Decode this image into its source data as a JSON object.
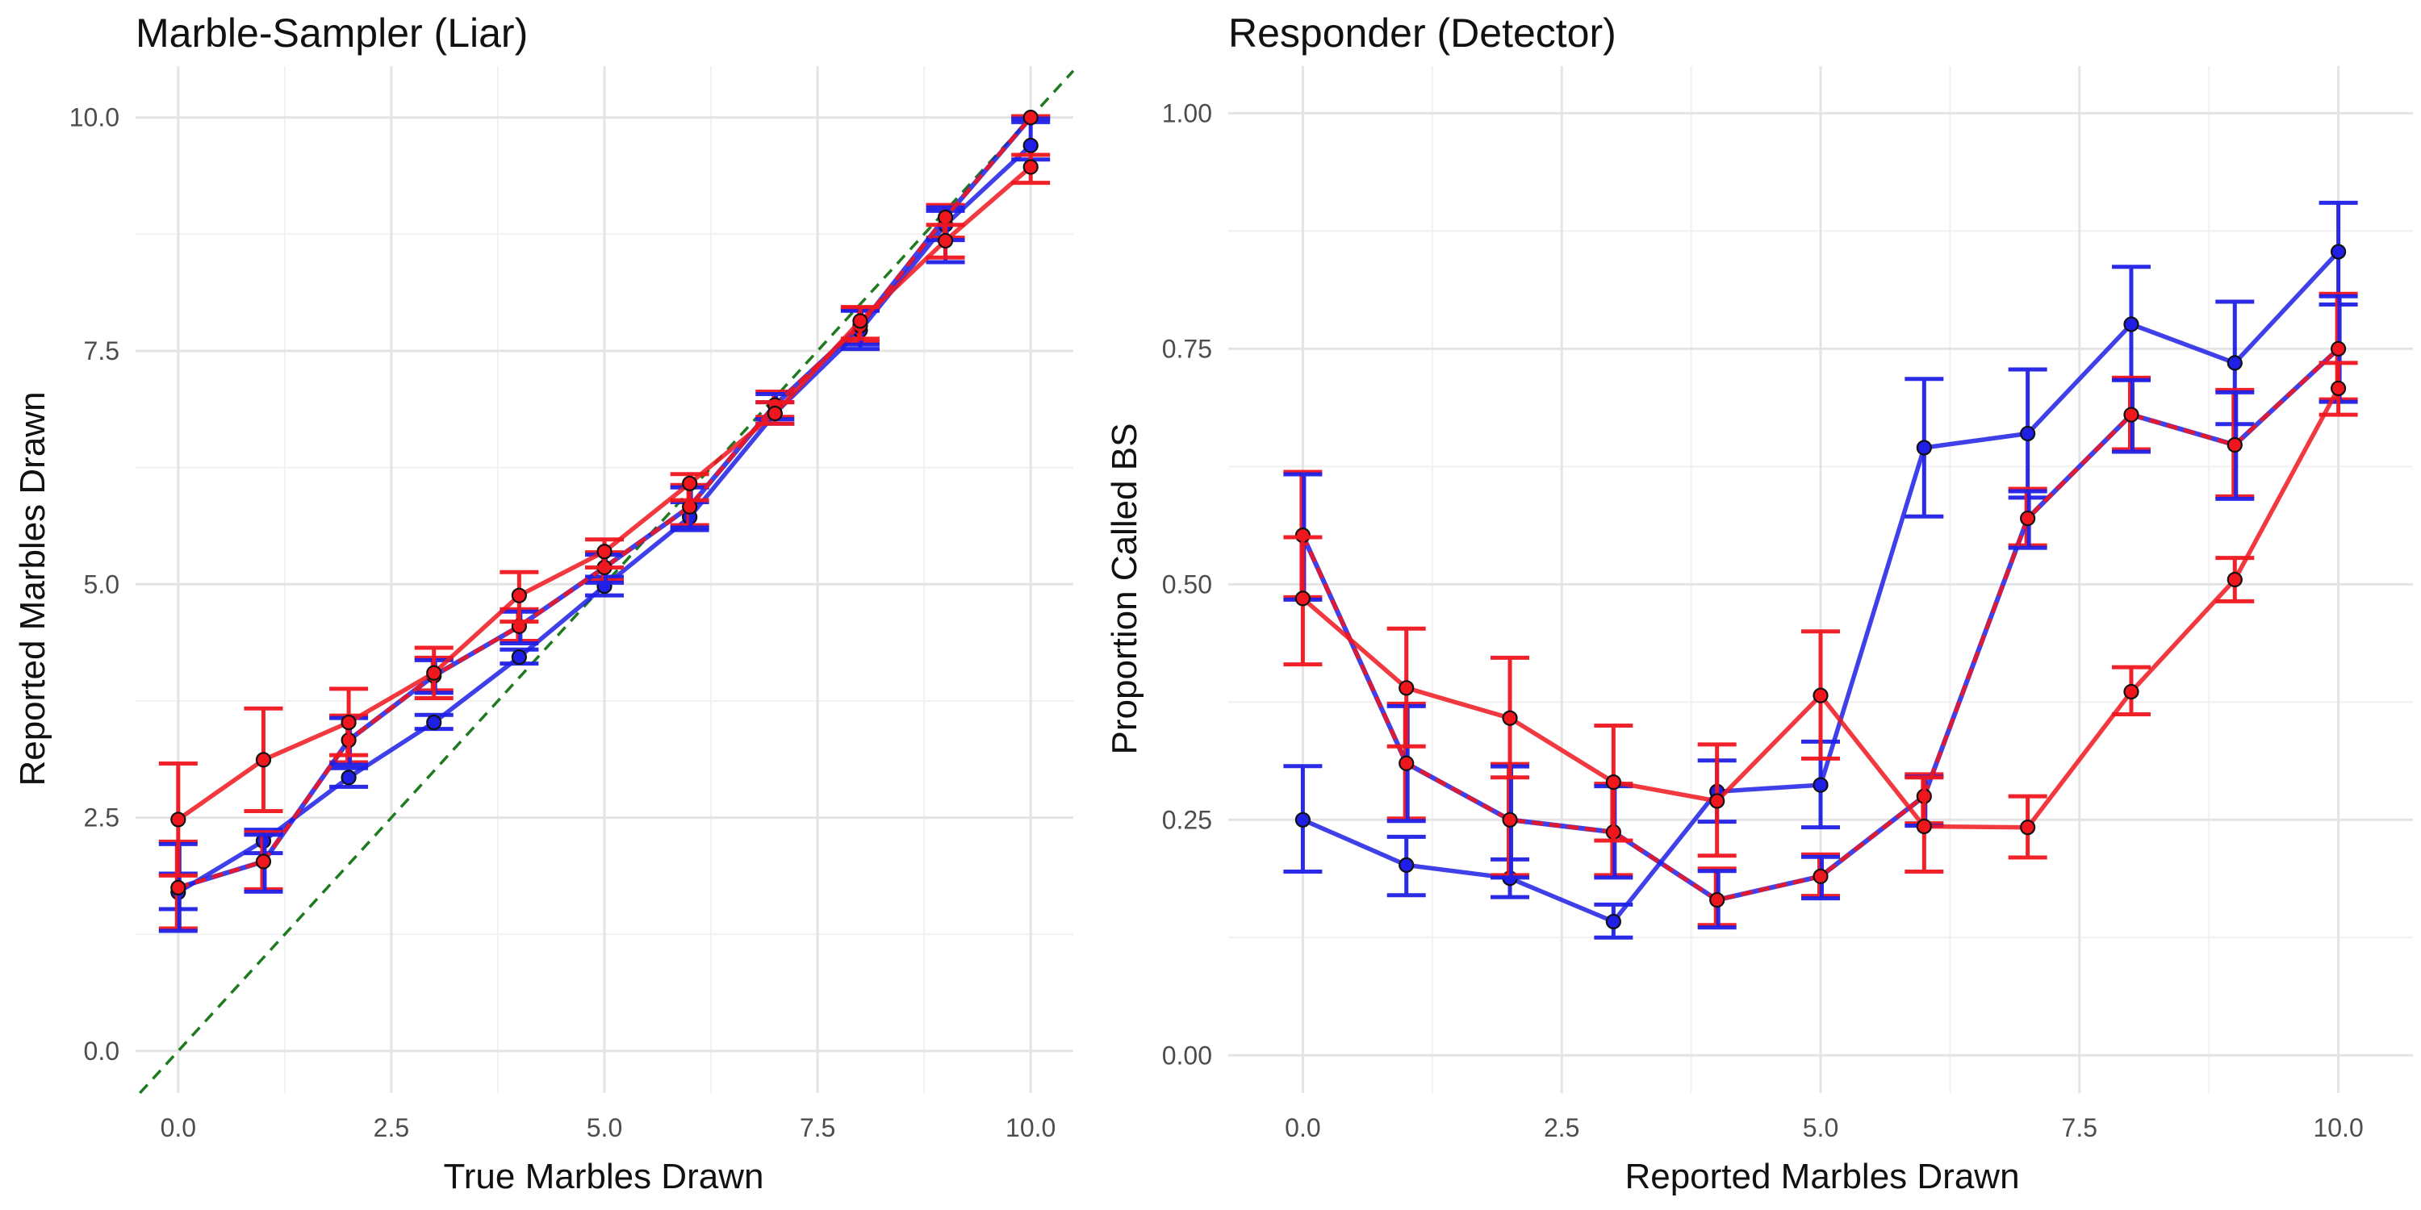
{
  "colors": {
    "blue": "#1f1fe6",
    "red": "#f0161e",
    "diagonal": "#1f7a1f",
    "grid_major": "#e4e4e4",
    "grid_minor": "#f1f1f1",
    "text": "#222222",
    "tick": "#4d4d4d"
  },
  "chart_data": [
    {
      "type": "line",
      "title": "Marble-Sampler (Liar)",
      "xlabel": "True Marbles Drawn",
      "ylabel": "Reported Marbles Drawn",
      "xlim": [
        -0.5,
        10.5
      ],
      "ylim": [
        -0.45,
        10.55
      ],
      "xticks": [
        "0.0",
        "2.5",
        "5.0",
        "7.5",
        "10.0"
      ],
      "yticks": [
        "0.0",
        "2.5",
        "5.0",
        "7.5",
        "10.0"
      ],
      "x": [
        0,
        1,
        2,
        3,
        4,
        5,
        6,
        7,
        8,
        9,
        10
      ],
      "grid": true,
      "reference_line": {
        "slope": 1,
        "intercept": 0,
        "style": "dashed",
        "color": "#1f7a1f"
      },
      "series": [
        {
          "color": "blue",
          "y": [
            1.7,
            2.25,
            2.93,
            3.52,
            4.22,
            4.98,
            5.72,
            6.83,
            7.72,
            8.85,
            9.7
          ],
          "err_lo": [
            1.52,
            2.12,
            2.83,
            3.45,
            4.15,
            4.88,
            5.58,
            6.72,
            7.52,
            8.45,
            9.55
          ],
          "err_hi": [
            1.9,
            2.37,
            3.03,
            3.6,
            4.3,
            5.08,
            5.88,
            6.95,
            7.93,
            9.0,
            9.95
          ]
        },
        {
          "color": "mixed",
          "y": [
            1.75,
            2.03,
            3.33,
            4.02,
            4.55,
            5.18,
            5.83,
            6.92,
            7.77,
            8.93,
            10.0
          ],
          "err_lo": [
            1.3,
            1.72,
            3.08,
            3.85,
            4.38,
            5.03,
            5.62,
            6.78,
            7.58,
            8.7,
            10.0
          ],
          "err_hi": [
            2.23,
            2.33,
            3.58,
            4.2,
            4.72,
            5.33,
            6.05,
            7.05,
            7.95,
            9.05,
            10.0
          ]
        },
        {
          "color": "red",
          "y": [
            2.48,
            3.12,
            3.52,
            4.05,
            4.88,
            5.35,
            6.08,
            6.83,
            7.82,
            8.68,
            9.47
          ],
          "err_lo": [
            1.88,
            2.57,
            3.17,
            3.78,
            4.6,
            5.18,
            5.9,
            6.72,
            7.63,
            8.5,
            9.3
          ],
          "err_hi": [
            3.08,
            3.67,
            3.88,
            4.32,
            5.13,
            5.48,
            6.18,
            6.95,
            7.97,
            8.85,
            9.6
          ]
        }
      ]
    },
    {
      "type": "line",
      "title": "Responder (Detector)",
      "xlabel": "Reported Marbles Drawn",
      "ylabel": "Proportion Called BS",
      "xlim": [
        -0.72,
        10.72
      ],
      "ylim": [
        -0.04,
        1.05
      ],
      "xticks": [
        "0.0",
        "2.5",
        "5.0",
        "7.5",
        "10.0"
      ],
      "yticks": [
        "0.00",
        "0.25",
        "0.50",
        "0.75",
        "1.00"
      ],
      "x": [
        0,
        1,
        2,
        3,
        4,
        5,
        6,
        7,
        8,
        9,
        10
      ],
      "grid": true,
      "series": [
        {
          "color": "blue",
          "y": [
            0.25,
            0.202,
            0.188,
            0.142,
            0.28,
            0.287,
            0.645,
            0.66,
            0.776,
            0.735,
            0.853
          ],
          "err_lo": [
            0.195,
            0.17,
            0.168,
            0.125,
            0.248,
            0.242,
            0.572,
            0.592,
            0.718,
            0.67,
            0.797
          ],
          "err_hi": [
            0.307,
            0.232,
            0.208,
            0.16,
            0.313,
            0.333,
            0.718,
            0.728,
            0.837,
            0.8,
            0.905
          ]
        },
        {
          "color": "mixed",
          "y": [
            0.552,
            0.31,
            0.25,
            0.237,
            0.165,
            0.19,
            0.275,
            0.57,
            0.68,
            0.648,
            0.75
          ],
          "err_lo": [
            0.485,
            0.25,
            0.19,
            0.19,
            0.137,
            0.168,
            0.245,
            0.54,
            0.642,
            0.592,
            0.695
          ],
          "err_hi": [
            0.618,
            0.372,
            0.308,
            0.287,
            0.197,
            0.212,
            0.297,
            0.6,
            0.718,
            0.705,
            0.807
          ]
        },
        {
          "color": "red",
          "y": [
            0.485,
            0.39,
            0.358,
            0.29,
            0.27,
            0.382,
            0.243,
            0.242,
            0.386,
            0.505,
            0.708
          ],
          "err_lo": [
            0.415,
            0.328,
            0.295,
            0.228,
            0.212,
            0.315,
            0.195,
            0.21,
            0.362,
            0.482,
            0.68
          ],
          "err_hi": [
            0.55,
            0.453,
            0.422,
            0.35,
            0.33,
            0.45,
            0.295,
            0.275,
            0.412,
            0.528,
            0.735
          ]
        }
      ]
    }
  ]
}
